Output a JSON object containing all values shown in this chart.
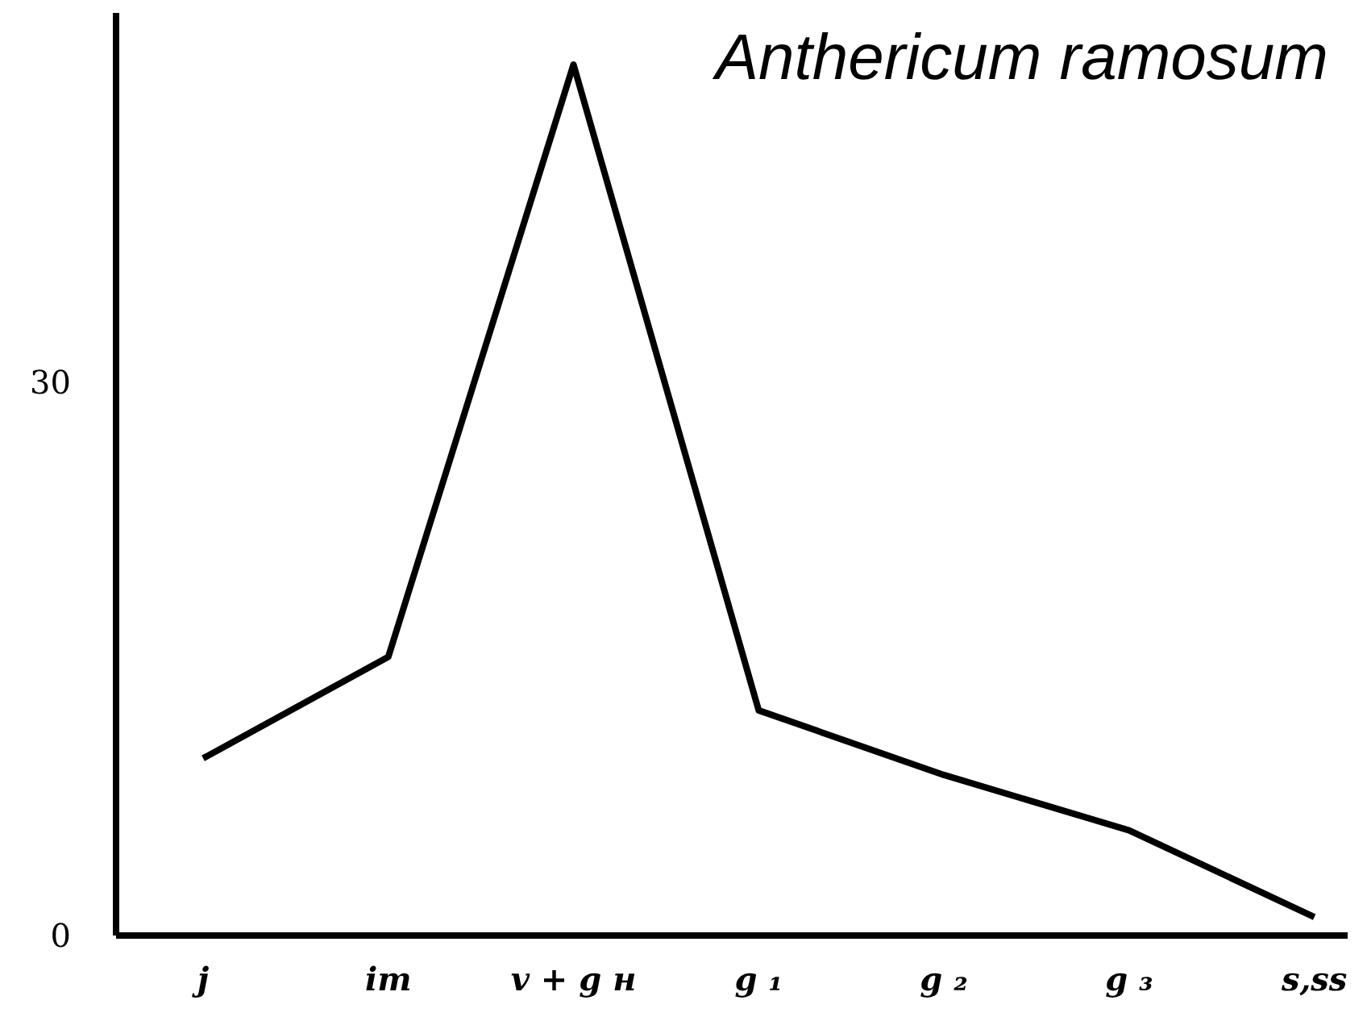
{
  "chart_data": {
    "type": "line",
    "title": "Anthericum ramosum",
    "categories": [
      "j",
      "im",
      "v + g н",
      "g ₁",
      "g ₂",
      "g ₃",
      "s,ss"
    ],
    "series": [
      {
        "color": "#000000",
        "values": [
          9.6,
          15.1,
          47.2,
          12.2,
          8.7,
          5.7,
          1.0
        ]
      }
    ],
    "ylim": [
      0,
      50
    ],
    "yticks": [
      0,
      30
    ],
    "marker": "none",
    "line_style": "solid"
  }
}
